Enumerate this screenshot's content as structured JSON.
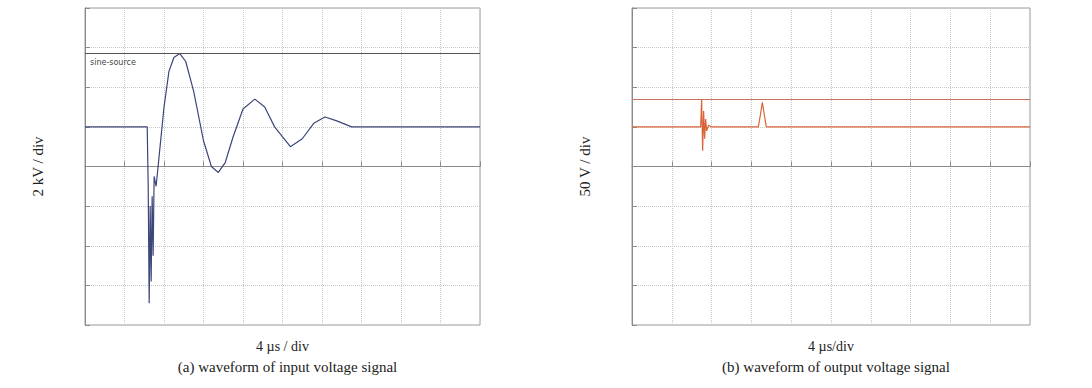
{
  "chart_data": [
    {
      "type": "line",
      "y_label": "2 kV / div",
      "x_label": "4 µs / div",
      "caption": "(a) waveform of input voltage signal",
      "x": [
        0,
        6.3,
        6.4,
        6.5,
        6.6,
        6.7,
        6.8,
        6.9,
        7.0,
        7.2,
        7.5,
        8.0,
        8.5,
        9.0,
        9.6,
        10.2,
        11.0,
        12.0,
        12.8,
        13.5,
        14.2,
        15.0,
        16.0,
        17.2,
        18.2,
        19.2,
        20.8,
        22.0,
        23.2,
        24.3,
        25.5,
        27.0,
        30.0,
        40.0
      ],
      "series": [
        {
          "color": "#3c4678",
          "values": [
            2,
            2,
            -1,
            -6.9,
            -2,
            -5.8,
            -1.5,
            -4.5,
            -0.5,
            -1,
            0.5,
            3,
            4.8,
            5.5,
            5.7,
            5.3,
            3.8,
            1.3,
            0,
            -0.3,
            0.2,
            1.5,
            2.9,
            3.4,
            3.0,
            2.0,
            1.0,
            1.4,
            2.2,
            2.5,
            2.3,
            2.0,
            2.0,
            2.0
          ]
        }
      ],
      "reference_line": {
        "value": 5.7,
        "label": "sine-source"
      },
      "xlim": [
        0,
        40
      ],
      "xticks": [
        0,
        4,
        8,
        12,
        16,
        20,
        24,
        28,
        32,
        36,
        40
      ],
      "ylim": [
        -8,
        8
      ],
      "yticks": [
        -8,
        -6,
        -4,
        -2,
        0,
        2,
        4,
        6,
        8
      ],
      "grid": true,
      "tick_labels": false
    },
    {
      "type": "line",
      "y_label": "50 V / div",
      "x_label": "4 µs/div",
      "caption": "(b) waveform of output voltage signal",
      "x": [
        0,
        6.9,
        7.0,
        7.1,
        7.2,
        7.3,
        7.4,
        7.5,
        7.7,
        8.0,
        12.7,
        12.9,
        13.1,
        13.3,
        13.5,
        40.0
      ],
      "series": [
        {
          "color": "#d9643a",
          "values": [
            50,
            50,
            85,
            20,
            70,
            35,
            60,
            45,
            52,
            50,
            50,
            65,
            81,
            65,
            50,
            50
          ]
        }
      ],
      "reference_line": {
        "value": 85
      },
      "xlim": [
        0,
        40
      ],
      "xticks": [
        0,
        4,
        8,
        12,
        16,
        20,
        24,
        28,
        32,
        36,
        40
      ],
      "ylim": [
        -200,
        200
      ],
      "yticks": [
        -200,
        -150,
        -100,
        -50,
        0,
        50,
        100,
        150,
        200
      ],
      "grid": true,
      "tick_labels": false
    }
  ]
}
